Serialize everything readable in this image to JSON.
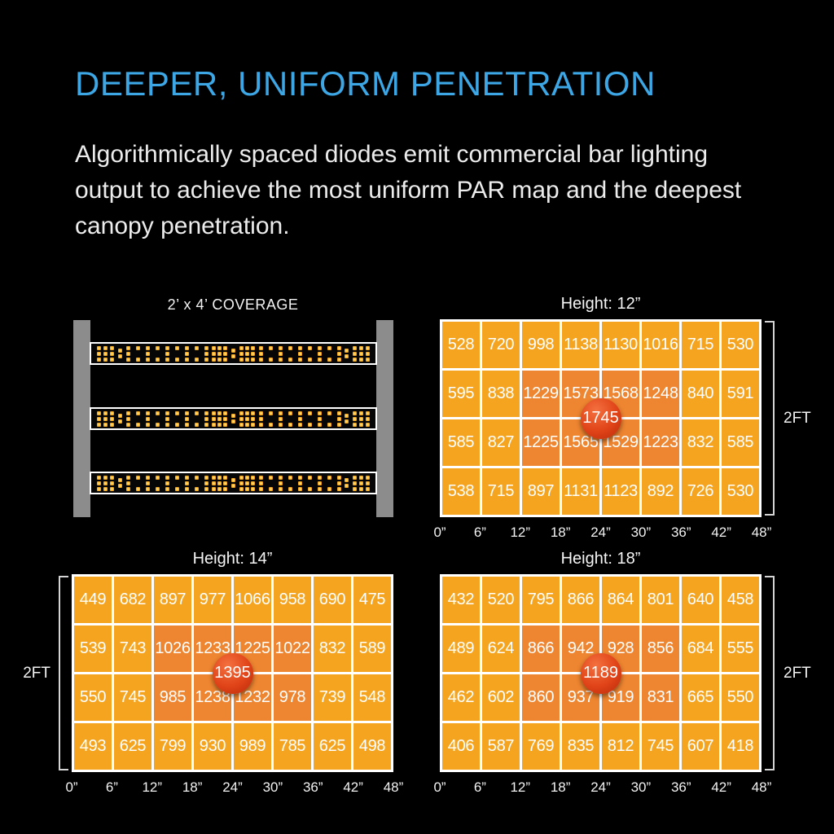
{
  "header": {
    "title": "DEEPER, UNIFORM PENETRATION",
    "description": "Algorithmically spaced diodes emit commercial bar lighting output to achieve the most uniform PAR map and the deepest canopy penetration."
  },
  "colors": {
    "accent_blue": "#3DA6E4",
    "cell_orange": "#F5A41F",
    "cell_hot_orange": "#EE8530",
    "hotspot_red": "#D93A12",
    "rail_gray": "#8C8C8C",
    "diode_orange": "#EF9C14",
    "grid_line_white": "#FFFFFF",
    "text_white": "#FFFFFF"
  },
  "coverage": {
    "label": "2’ x 4’ COVERAGE",
    "bar_count": 3,
    "segments": [
      "cluster",
      "pair",
      "run",
      "dense",
      "pair",
      "dense",
      "run",
      "pair",
      "cluster"
    ],
    "run_columns": 9,
    "run_pattern": [
      "111",
      "101"
    ],
    "dense_columns": 3
  },
  "chart_data": [
    {
      "type": "heatmap",
      "title": "Height: 12”",
      "x_ticks": [
        "0”",
        "6”",
        "12”",
        "18”",
        "24”",
        "30”",
        "36”",
        "42”",
        "48”"
      ],
      "side_label": "2FT",
      "bracket_side": "right",
      "peak_value": "1745",
      "rows": [
        [
          528,
          720,
          998,
          1138,
          1130,
          1016,
          715,
          530
        ],
        [
          595,
          838,
          1229,
          1573,
          1568,
          1248,
          840,
          591
        ],
        [
          585,
          827,
          1225,
          1565,
          1529,
          1223,
          832,
          585
        ],
        [
          538,
          715,
          897,
          1131,
          1123,
          892,
          726,
          530
        ]
      ],
      "hot_region": {
        "row_start": 2,
        "row_end": 3,
        "col_start": 3,
        "col_end": 6
      }
    },
    {
      "type": "heatmap",
      "title": "Height: 14”",
      "x_ticks": [
        "0”",
        "6”",
        "12”",
        "18”",
        "24”",
        "30”",
        "36”",
        "42”",
        "48”"
      ],
      "side_label": "2FT",
      "bracket_side": "left",
      "peak_value": "1395",
      "rows": [
        [
          449,
          682,
          897,
          977,
          1066,
          958,
          690,
          475
        ],
        [
          539,
          743,
          1026,
          1233,
          1225,
          1022,
          832,
          589
        ],
        [
          550,
          745,
          985,
          1238,
          1232,
          978,
          739,
          548
        ],
        [
          493,
          625,
          799,
          930,
          989,
          785,
          625,
          498
        ]
      ],
      "hot_region": {
        "row_start": 2,
        "row_end": 3,
        "col_start": 3,
        "col_end": 6
      }
    },
    {
      "type": "heatmap",
      "title": "Height: 18”",
      "x_ticks": [
        "0”",
        "6”",
        "12”",
        "18”",
        "24”",
        "30”",
        "36”",
        "42”",
        "48”"
      ],
      "side_label": "2FT",
      "bracket_side": "right",
      "peak_value": "1189",
      "rows": [
        [
          432,
          520,
          795,
          866,
          864,
          801,
          640,
          458
        ],
        [
          489,
          624,
          866,
          942,
          928,
          856,
          684,
          555
        ],
        [
          462,
          602,
          860,
          937,
          919,
          831,
          665,
          550
        ],
        [
          406,
          587,
          769,
          835,
          812,
          745,
          607,
          418
        ]
      ],
      "hot_region": {
        "row_start": 2,
        "row_end": 3,
        "col_start": 3,
        "col_end": 6
      }
    }
  ]
}
